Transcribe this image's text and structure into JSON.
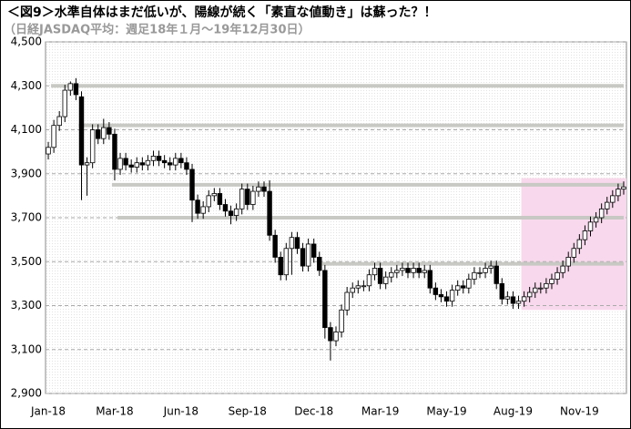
{
  "chart_data": {
    "type": "candlestick",
    "title": "＜図9＞水準自体はまだ低いが、陽線が続く「素直な値動き」は蘇った？！",
    "subtitle": "（日経JASDAQ平均：週足18年１月～19年12月30日）",
    "categories": [
      "Jan-18",
      null,
      null,
      null,
      null,
      null,
      null,
      null,
      null,
      null,
      null,
      null,
      "Mar-18",
      null,
      null,
      null,
      null,
      null,
      null,
      null,
      null,
      null,
      null,
      null,
      "Jun-18",
      null,
      null,
      null,
      null,
      null,
      null,
      null,
      null,
      null,
      null,
      null,
      "Sep-18",
      null,
      null,
      null,
      null,
      null,
      null,
      null,
      null,
      null,
      null,
      null,
      "Dec-18",
      null,
      null,
      null,
      null,
      null,
      null,
      null,
      null,
      null,
      null,
      null,
      "Mar-19",
      null,
      null,
      null,
      null,
      null,
      null,
      null,
      null,
      null,
      null,
      null,
      "May-19",
      null,
      null,
      null,
      null,
      null,
      null,
      null,
      null,
      null,
      null,
      null,
      "Aug-19",
      null,
      null,
      null,
      null,
      null,
      null,
      null,
      null,
      null,
      null,
      null,
      "Nov-19",
      null,
      null,
      null,
      null,
      null,
      null,
      null,
      null
    ],
    "open": [
      3990,
      4020,
      4120,
      4160,
      4280,
      4310,
      4250,
      3940,
      3950,
      4100,
      4060,
      4110,
      4080,
      3920,
      3970,
      3940,
      3930,
      3950,
      3940,
      3960,
      3980,
      3960,
      3950,
      3940,
      3970,
      3950,
      3920,
      3780,
      3720,
      3750,
      3800,
      3810,
      3760,
      3730,
      3710,
      3740,
      3830,
      3760,
      3820,
      3840,
      3820,
      3620,
      3520,
      3440,
      3560,
      3610,
      3560,
      3480,
      3580,
      3520,
      3460,
      3200,
      3140,
      3180,
      3280,
      3360,
      3380,
      3390,
      3390,
      3440,
      3470,
      3400,
      3430,
      3450,
      3460,
      3470,
      3450,
      3470,
      3450,
      3460,
      3380,
      3350,
      3340,
      3320,
      3370,
      3390,
      3380,
      3420,
      3450,
      3450,
      3470,
      3480,
      3400,
      3330,
      3340,
      3310,
      3320,
      3340,
      3360,
      3380,
      3380,
      3400,
      3420,
      3450,
      3480,
      3520,
      3560,
      3600,
      3640,
      3680,
      3700,
      3740,
      3770,
      3800,
      3830
    ],
    "high": [
      4045,
      4145,
      4185,
      4305,
      4320,
      4335,
      4275,
      3975,
      4125,
      4125,
      4150,
      4135,
      4105,
      3995,
      3995,
      3965,
      3975,
      3975,
      3985,
      4005,
      4005,
      3985,
      3975,
      3995,
      3995,
      3975,
      3945,
      3805,
      3775,
      3825,
      3835,
      3835,
      3785,
      3755,
      3765,
      3855,
      3855,
      3845,
      3865,
      3865,
      3870,
      3645,
      3545,
      3585,
      3635,
      3635,
      3585,
      3605,
      3605,
      3545,
      3485,
      3225,
      3205,
      3305,
      3385,
      3405,
      3415,
      3415,
      3465,
      3495,
      3495,
      3455,
      3475,
      3485,
      3495,
      3495,
      3495,
      3495,
      3485,
      3485,
      3405,
      3375,
      3365,
      3395,
      3415,
      3415,
      3445,
      3475,
      3475,
      3495,
      3505,
      3505,
      3425,
      3365,
      3365,
      3345,
      3365,
      3385,
      3405,
      3405,
      3425,
      3445,
      3475,
      3505,
      3545,
      3585,
      3625,
      3665,
      3705,
      3725,
      3765,
      3795,
      3825,
      3855,
      3865
    ],
    "low": [
      3965,
      3995,
      4095,
      4135,
      4255,
      4235,
      3780,
      3800,
      3925,
      4035,
      4035,
      4055,
      3870,
      3895,
      3915,
      3905,
      3905,
      3915,
      3915,
      3935,
      3935,
      3925,
      3915,
      3915,
      3925,
      3895,
      3680,
      3695,
      3695,
      3725,
      3775,
      3735,
      3705,
      3670,
      3685,
      3715,
      3735,
      3735,
      3795,
      3795,
      3595,
      3495,
      3415,
      3415,
      3440,
      3535,
      3455,
      3455,
      3495,
      3435,
      3150,
      3050,
      3115,
      3155,
      3255,
      3335,
      3355,
      3365,
      3365,
      3415,
      3375,
      3375,
      3405,
      3425,
      3435,
      3425,
      3425,
      3425,
      3425,
      3355,
      3325,
      3315,
      3295,
      3295,
      3345,
      3355,
      3355,
      3395,
      3425,
      3425,
      3445,
      3375,
      3305,
      3305,
      3285,
      3285,
      3295,
      3315,
      3335,
      3355,
      3355,
      3375,
      3395,
      3425,
      3455,
      3495,
      3535,
      3575,
      3615,
      3655,
      3675,
      3715,
      3745,
      3775,
      3805
    ],
    "close": [
      4020,
      4120,
      4160,
      4280,
      4310,
      4260,
      3940,
      3950,
      4100,
      4060,
      4110,
      4080,
      3920,
      3970,
      3940,
      3930,
      3950,
      3940,
      3960,
      3980,
      3960,
      3950,
      3940,
      3970,
      3950,
      3920,
      3780,
      3720,
      3750,
      3800,
      3810,
      3760,
      3730,
      3710,
      3740,
      3830,
      3760,
      3820,
      3840,
      3820,
      3620,
      3520,
      3440,
      3560,
      3610,
      3560,
      3480,
      3580,
      3520,
      3460,
      3200,
      3140,
      3180,
      3280,
      3360,
      3380,
      3390,
      3390,
      3440,
      3470,
      3400,
      3430,
      3450,
      3460,
      3470,
      3450,
      3470,
      3450,
      3460,
      3380,
      3350,
      3340,
      3320,
      3370,
      3390,
      3380,
      3420,
      3450,
      3450,
      3470,
      3480,
      3400,
      3330,
      3340,
      3310,
      3320,
      3340,
      3360,
      3380,
      3380,
      3400,
      3420,
      3450,
      3480,
      3520,
      3560,
      3600,
      3640,
      3680,
      3700,
      3740,
      3770,
      3800,
      3830,
      3840
    ],
    "up_color": "#ffffff",
    "down_color": "#000000",
    "ylim": [
      2900,
      4500
    ],
    "yticks": [
      {
        "value": 2900,
        "label": "2,900"
      },
      {
        "value": 3100,
        "label": "3,100"
      },
      {
        "value": 3300,
        "label": "3,300"
      },
      {
        "value": 3500,
        "label": "3,500"
      },
      {
        "value": 3700,
        "label": "3,700"
      },
      {
        "value": 3900,
        "label": "3,900"
      },
      {
        "value": 4100,
        "label": "4,100"
      },
      {
        "value": 4300,
        "label": "4,300"
      },
      {
        "value": 4500,
        "label": "4,500"
      }
    ],
    "grid": true,
    "hlines": [
      {
        "value": 4300,
        "start": 1
      },
      {
        "value": 4120,
        "start": 6
      },
      {
        "value": 3850,
        "start": 12
      },
      {
        "value": 3700,
        "start": 13
      },
      {
        "value": 3490,
        "start": 50
      }
    ],
    "hline_color": "#c8c8c4",
    "highlight": {
      "start": 86,
      "ylim": [
        3280,
        3880
      ],
      "color": "#f8d8ec"
    }
  }
}
